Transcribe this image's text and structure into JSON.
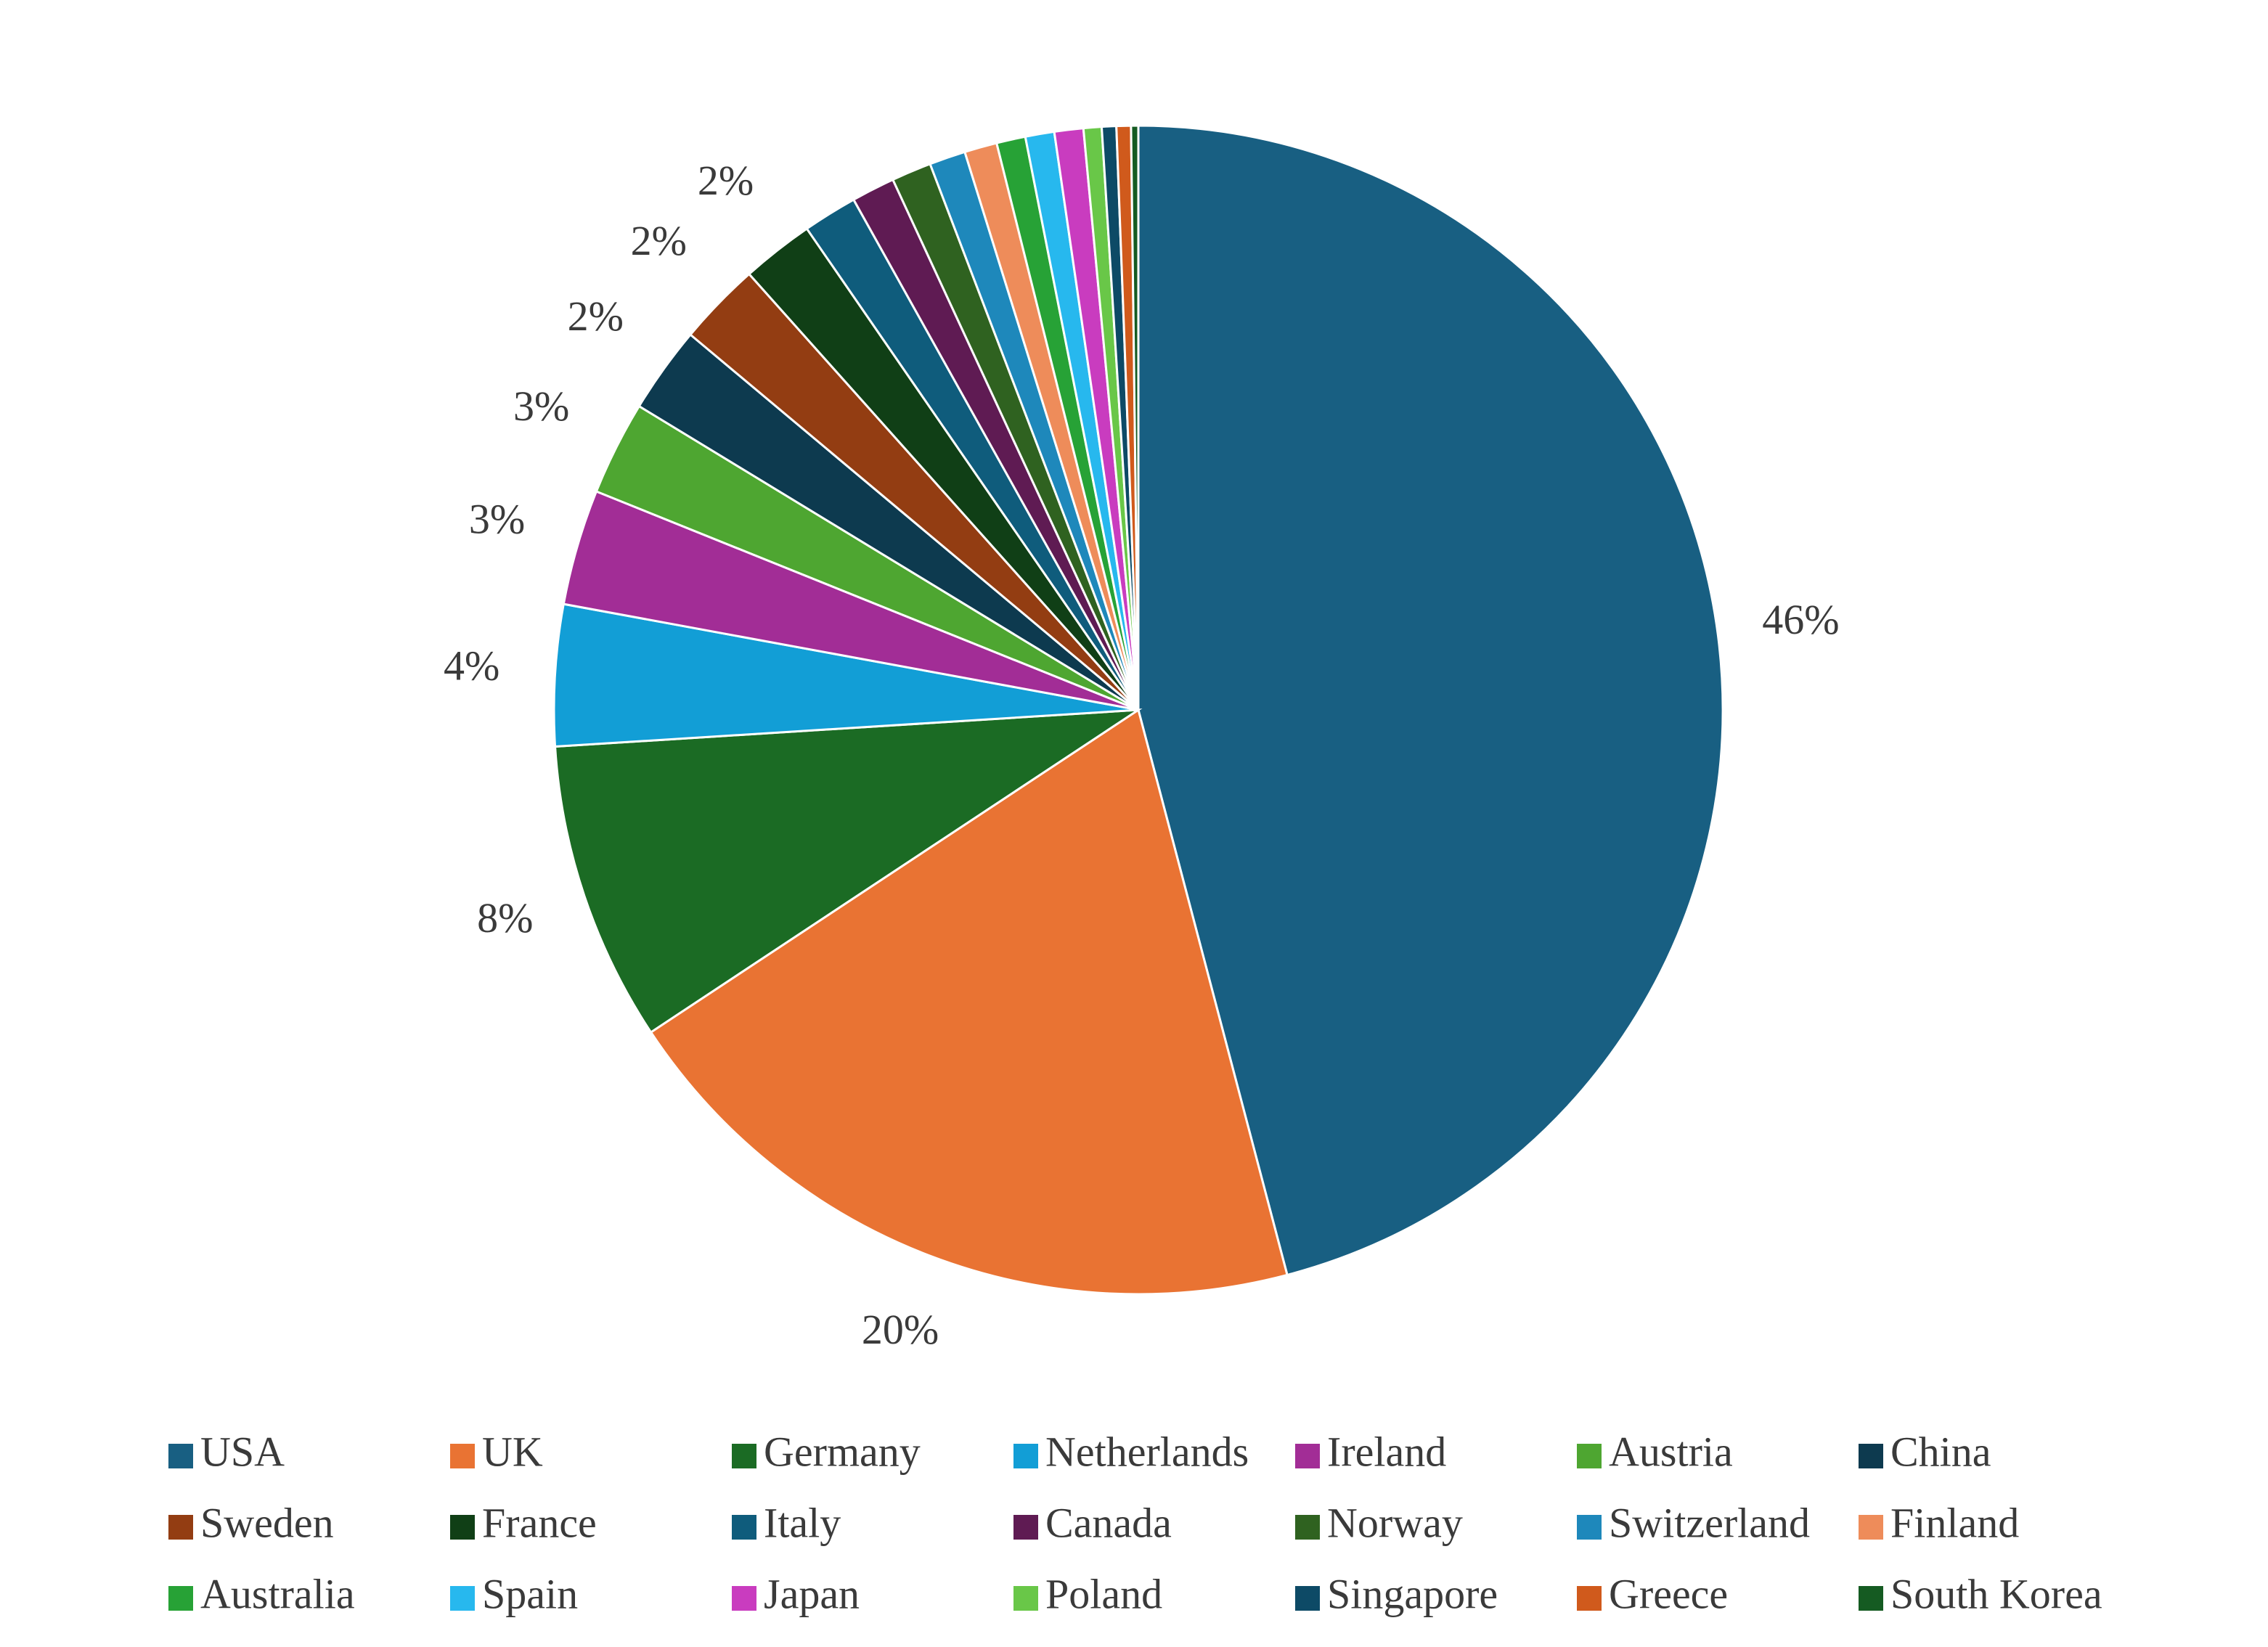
{
  "chart_data": {
    "type": "pie",
    "title": "",
    "legend_position": "bottom",
    "start_angle_deg": 0,
    "direction": "clockwise",
    "slices": [
      {
        "name": "USA",
        "value": 45.9,
        "label": "46%",
        "color": "#185f82"
      },
      {
        "name": "UK",
        "value": 19.8,
        "label": "20%",
        "color": "#e97333"
      },
      {
        "name": "Germany",
        "value": 8.3,
        "label": "8%",
        "color": "#1b6b24"
      },
      {
        "name": "Netherlands",
        "value": 3.9,
        "label": "4%",
        "color": "#129ed6"
      },
      {
        "name": "Ireland",
        "value": 3.2,
        "label": "3%",
        "color": "#a22d96"
      },
      {
        "name": "Austria",
        "value": 2.6,
        "label": "3%",
        "color": "#4ea631"
      },
      {
        "name": "China",
        "value": 2.4,
        "label": "2%",
        "color": "#0d3a4f"
      },
      {
        "name": "Sweden",
        "value": 2.3,
        "label": "2%",
        "color": "#933d12"
      },
      {
        "name": "France",
        "value": 2.0,
        "label": "2%",
        "color": "#103f16"
      },
      {
        "name": "Italy",
        "value": 1.5,
        "label": "",
        "color": "#0f5c7c"
      },
      {
        "name": "Canada",
        "value": 1.2,
        "label": "",
        "color": "#5f1b53"
      },
      {
        "name": "Norway",
        "value": 1.1,
        "label": "",
        "color": "#2f6220"
      },
      {
        "name": "Switzerland",
        "value": 1.0,
        "label": "",
        "color": "#1e88bb"
      },
      {
        "name": "Finland",
        "value": 0.9,
        "label": "",
        "color": "#ee8c5a"
      },
      {
        "name": "Australia",
        "value": 0.8,
        "label": "",
        "color": "#27a236"
      },
      {
        "name": "Spain",
        "value": 0.8,
        "label": "",
        "color": "#27b8ee"
      },
      {
        "name": "Japan",
        "value": 0.8,
        "label": "",
        "color": "#c93cbf"
      },
      {
        "name": "Poland",
        "value": 0.5,
        "label": "",
        "color": "#69c748"
      },
      {
        "name": "Singapore",
        "value": 0.4,
        "label": "",
        "color": "#0d4a66"
      },
      {
        "name": "Greece",
        "value": 0.4,
        "label": "",
        "color": "#d05a1c"
      },
      {
        "name": "South Korea",
        "value": 0.2,
        "label": "",
        "color": "#155b22"
      }
    ]
  }
}
